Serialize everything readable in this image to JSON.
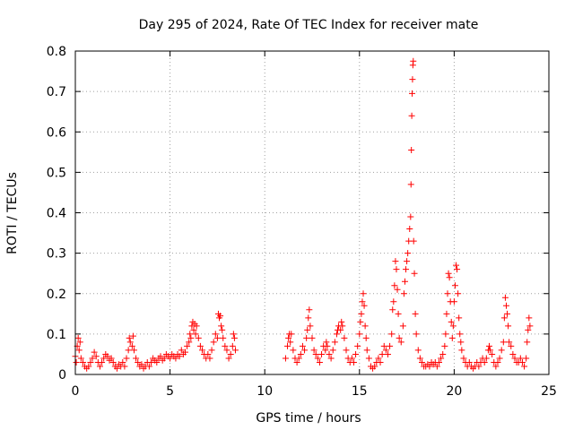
{
  "chart_data": {
    "type": "scatter",
    "title": "Day 295 of 2024, Rate Of TEC Index for receiver mate",
    "xlabel": "GPS time / hours",
    "ylabel": "ROTI / TECUs",
    "xlim": [
      0,
      25
    ],
    "ylim": [
      0,
      0.8
    ],
    "xticks": [
      0,
      5,
      10,
      15,
      20,
      25
    ],
    "yticks": [
      0,
      0.1,
      0.2,
      0.3,
      0.4,
      0.5,
      0.6,
      0.7,
      0.8
    ],
    "grid": true,
    "marker": "+",
    "color": "#ff0000",
    "series": [
      {
        "name": "ROTI",
        "points": [
          [
            0.0,
            0.045
          ],
          [
            0.05,
            0.03
          ],
          [
            0.1,
            0.07
          ],
          [
            0.15,
            0.09
          ],
          [
            0.2,
            0.06
          ],
          [
            0.25,
            0.08
          ],
          [
            0.3,
            0.04
          ],
          [
            0.4,
            0.03
          ],
          [
            0.5,
            0.02
          ],
          [
            0.6,
            0.015
          ],
          [
            0.7,
            0.02
          ],
          [
            0.8,
            0.03
          ],
          [
            0.9,
            0.04
          ],
          [
            1.0,
            0.055
          ],
          [
            1.1,
            0.045
          ],
          [
            1.2,
            0.03
          ],
          [
            1.3,
            0.02
          ],
          [
            1.4,
            0.03
          ],
          [
            1.5,
            0.04
          ],
          [
            1.6,
            0.05
          ],
          [
            1.7,
            0.045
          ],
          [
            1.8,
            0.035
          ],
          [
            1.9,
            0.04
          ],
          [
            2.0,
            0.03
          ],
          [
            2.1,
            0.02
          ],
          [
            2.2,
            0.015
          ],
          [
            2.3,
            0.025
          ],
          [
            2.4,
            0.02
          ],
          [
            2.5,
            0.03
          ],
          [
            2.6,
            0.02
          ],
          [
            2.7,
            0.04
          ],
          [
            2.8,
            0.06
          ],
          [
            2.85,
            0.09
          ],
          [
            2.9,
            0.08
          ],
          [
            3.0,
            0.07
          ],
          [
            3.05,
            0.095
          ],
          [
            3.1,
            0.06
          ],
          [
            3.2,
            0.04
          ],
          [
            3.3,
            0.03
          ],
          [
            3.4,
            0.02
          ],
          [
            3.5,
            0.025
          ],
          [
            3.6,
            0.015
          ],
          [
            3.7,
            0.02
          ],
          [
            3.8,
            0.03
          ],
          [
            3.9,
            0.02
          ],
          [
            4.0,
            0.03
          ],
          [
            4.1,
            0.04
          ],
          [
            4.2,
            0.035
          ],
          [
            4.3,
            0.03
          ],
          [
            4.4,
            0.04
          ],
          [
            4.5,
            0.045
          ],
          [
            4.6,
            0.035
          ],
          [
            4.7,
            0.04
          ],
          [
            4.8,
            0.05
          ],
          [
            4.9,
            0.045
          ],
          [
            5.0,
            0.04
          ],
          [
            5.1,
            0.05
          ],
          [
            5.2,
            0.045
          ],
          [
            5.3,
            0.04
          ],
          [
            5.4,
            0.05
          ],
          [
            5.5,
            0.045
          ],
          [
            5.6,
            0.06
          ],
          [
            5.7,
            0.05
          ],
          [
            5.8,
            0.055
          ],
          [
            5.9,
            0.07
          ],
          [
            6.0,
            0.08
          ],
          [
            6.05,
            0.1
          ],
          [
            6.1,
            0.09
          ],
          [
            6.15,
            0.12
          ],
          [
            6.2,
            0.13
          ],
          [
            6.25,
            0.11
          ],
          [
            6.3,
            0.125
          ],
          [
            6.35,
            0.1
          ],
          [
            6.4,
            0.12
          ],
          [
            6.5,
            0.09
          ],
          [
            6.6,
            0.07
          ],
          [
            6.7,
            0.06
          ],
          [
            6.8,
            0.05
          ],
          [
            6.9,
            0.04
          ],
          [
            7.0,
            0.05
          ],
          [
            7.1,
            0.04
          ],
          [
            7.2,
            0.06
          ],
          [
            7.3,
            0.08
          ],
          [
            7.4,
            0.1
          ],
          [
            7.5,
            0.09
          ],
          [
            7.55,
            0.15
          ],
          [
            7.6,
            0.14
          ],
          [
            7.65,
            0.145
          ],
          [
            7.7,
            0.12
          ],
          [
            7.75,
            0.11
          ],
          [
            7.8,
            0.09
          ],
          [
            7.9,
            0.07
          ],
          [
            8.0,
            0.06
          ],
          [
            8.1,
            0.04
          ],
          [
            8.2,
            0.05
          ],
          [
            8.3,
            0.07
          ],
          [
            8.35,
            0.1
          ],
          [
            8.4,
            0.09
          ],
          [
            8.45,
            0.06
          ],
          [
            11.1,
            0.04
          ],
          [
            11.2,
            0.07
          ],
          [
            11.25,
            0.09
          ],
          [
            11.3,
            0.1
          ],
          [
            11.35,
            0.08
          ],
          [
            11.4,
            0.1
          ],
          [
            11.5,
            0.06
          ],
          [
            11.6,
            0.04
          ],
          [
            11.7,
            0.03
          ],
          [
            11.8,
            0.04
          ],
          [
            11.9,
            0.05
          ],
          [
            12.0,
            0.07
          ],
          [
            12.1,
            0.06
          ],
          [
            12.2,
            0.09
          ],
          [
            12.25,
            0.11
          ],
          [
            12.3,
            0.14
          ],
          [
            12.35,
            0.16
          ],
          [
            12.4,
            0.12
          ],
          [
            12.5,
            0.09
          ],
          [
            12.6,
            0.06
          ],
          [
            12.7,
            0.05
          ],
          [
            12.8,
            0.04
          ],
          [
            12.9,
            0.03
          ],
          [
            13.0,
            0.05
          ],
          [
            13.1,
            0.07
          ],
          [
            13.2,
            0.06
          ],
          [
            13.25,
            0.08
          ],
          [
            13.3,
            0.07
          ],
          [
            13.4,
            0.05
          ],
          [
            13.5,
            0.04
          ],
          [
            13.6,
            0.06
          ],
          [
            13.7,
            0.08
          ],
          [
            13.8,
            0.1
          ],
          [
            13.85,
            0.11
          ],
          [
            13.9,
            0.12
          ],
          [
            14.0,
            0.11
          ],
          [
            14.05,
            0.13
          ],
          [
            14.1,
            0.12
          ],
          [
            14.2,
            0.09
          ],
          [
            14.3,
            0.06
          ],
          [
            14.4,
            0.04
          ],
          [
            14.5,
            0.03
          ],
          [
            14.6,
            0.04
          ],
          [
            14.7,
            0.03
          ],
          [
            14.8,
            0.05
          ],
          [
            14.9,
            0.07
          ],
          [
            15.0,
            0.1
          ],
          [
            15.05,
            0.13
          ],
          [
            15.1,
            0.15
          ],
          [
            15.15,
            0.18
          ],
          [
            15.2,
            0.2
          ],
          [
            15.25,
            0.17
          ],
          [
            15.3,
            0.12
          ],
          [
            15.35,
            0.09
          ],
          [
            15.4,
            0.06
          ],
          [
            15.5,
            0.04
          ],
          [
            15.6,
            0.02
          ],
          [
            15.7,
            0.015
          ],
          [
            15.8,
            0.02
          ],
          [
            15.9,
            0.03
          ],
          [
            16.0,
            0.04
          ],
          [
            16.1,
            0.03
          ],
          [
            16.2,
            0.05
          ],
          [
            16.3,
            0.07
          ],
          [
            16.4,
            0.06
          ],
          [
            16.5,
            0.05
          ],
          [
            16.6,
            0.07
          ],
          [
            16.7,
            0.1
          ],
          [
            16.75,
            0.16
          ],
          [
            16.8,
            0.18
          ],
          [
            16.85,
            0.22
          ],
          [
            16.9,
            0.28
          ],
          [
            16.95,
            0.26
          ],
          [
            17.0,
            0.21
          ],
          [
            17.05,
            0.15
          ],
          [
            17.1,
            0.09
          ],
          [
            17.2,
            0.08
          ],
          [
            17.3,
            0.12
          ],
          [
            17.35,
            0.2
          ],
          [
            17.4,
            0.23
          ],
          [
            17.45,
            0.26
          ],
          [
            17.5,
            0.28
          ],
          [
            17.55,
            0.3
          ],
          [
            17.6,
            0.33
          ],
          [
            17.65,
            0.36
          ],
          [
            17.7,
            0.39
          ],
          [
            17.72,
            0.47
          ],
          [
            17.74,
            0.555
          ],
          [
            17.76,
            0.64
          ],
          [
            17.78,
            0.695
          ],
          [
            17.8,
            0.73
          ],
          [
            17.82,
            0.765
          ],
          [
            17.84,
            0.775
          ],
          [
            17.86,
            0.33
          ],
          [
            17.9,
            0.25
          ],
          [
            17.95,
            0.15
          ],
          [
            18.0,
            0.1
          ],
          [
            18.1,
            0.06
          ],
          [
            18.2,
            0.04
          ],
          [
            18.3,
            0.03
          ],
          [
            18.4,
            0.02
          ],
          [
            18.5,
            0.02
          ],
          [
            18.6,
            0.025
          ],
          [
            18.7,
            0.02
          ],
          [
            18.8,
            0.03
          ],
          [
            18.9,
            0.025
          ],
          [
            19.0,
            0.03
          ],
          [
            19.1,
            0.02
          ],
          [
            19.2,
            0.03
          ],
          [
            19.3,
            0.04
          ],
          [
            19.4,
            0.05
          ],
          [
            19.5,
            0.07
          ],
          [
            19.55,
            0.1
          ],
          [
            19.6,
            0.15
          ],
          [
            19.65,
            0.2
          ],
          [
            19.7,
            0.25
          ],
          [
            19.75,
            0.24
          ],
          [
            19.8,
            0.18
          ],
          [
            19.85,
            0.13
          ],
          [
            19.9,
            0.09
          ],
          [
            19.95,
            0.12
          ],
          [
            20.0,
            0.18
          ],
          [
            20.05,
            0.22
          ],
          [
            20.1,
            0.27
          ],
          [
            20.15,
            0.26
          ],
          [
            20.2,
            0.2
          ],
          [
            20.25,
            0.14
          ],
          [
            20.3,
            0.1
          ],
          [
            20.35,
            0.08
          ],
          [
            20.4,
            0.06
          ],
          [
            20.5,
            0.04
          ],
          [
            20.6,
            0.03
          ],
          [
            20.7,
            0.02
          ],
          [
            20.8,
            0.03
          ],
          [
            20.9,
            0.02
          ],
          [
            21.0,
            0.015
          ],
          [
            21.1,
            0.02
          ],
          [
            21.2,
            0.03
          ],
          [
            21.3,
            0.02
          ],
          [
            21.4,
            0.03
          ],
          [
            21.5,
            0.04
          ],
          [
            21.6,
            0.03
          ],
          [
            21.7,
            0.04
          ],
          [
            21.8,
            0.06
          ],
          [
            21.85,
            0.07
          ],
          [
            21.9,
            0.06
          ],
          [
            22.0,
            0.05
          ],
          [
            22.1,
            0.03
          ],
          [
            22.2,
            0.02
          ],
          [
            22.3,
            0.03
          ],
          [
            22.4,
            0.04
          ],
          [
            22.5,
            0.06
          ],
          [
            22.6,
            0.08
          ],
          [
            22.65,
            0.14
          ],
          [
            22.7,
            0.19
          ],
          [
            22.75,
            0.17
          ],
          [
            22.8,
            0.15
          ],
          [
            22.85,
            0.12
          ],
          [
            22.9,
            0.08
          ],
          [
            23.0,
            0.07
          ],
          [
            23.1,
            0.05
          ],
          [
            23.2,
            0.04
          ],
          [
            23.3,
            0.03
          ],
          [
            23.4,
            0.03
          ],
          [
            23.5,
            0.04
          ],
          [
            23.6,
            0.03
          ],
          [
            23.7,
            0.02
          ],
          [
            23.8,
            0.04
          ],
          [
            23.85,
            0.08
          ],
          [
            23.9,
            0.11
          ],
          [
            23.95,
            0.14
          ],
          [
            24.0,
            0.12
          ]
        ]
      }
    ]
  }
}
